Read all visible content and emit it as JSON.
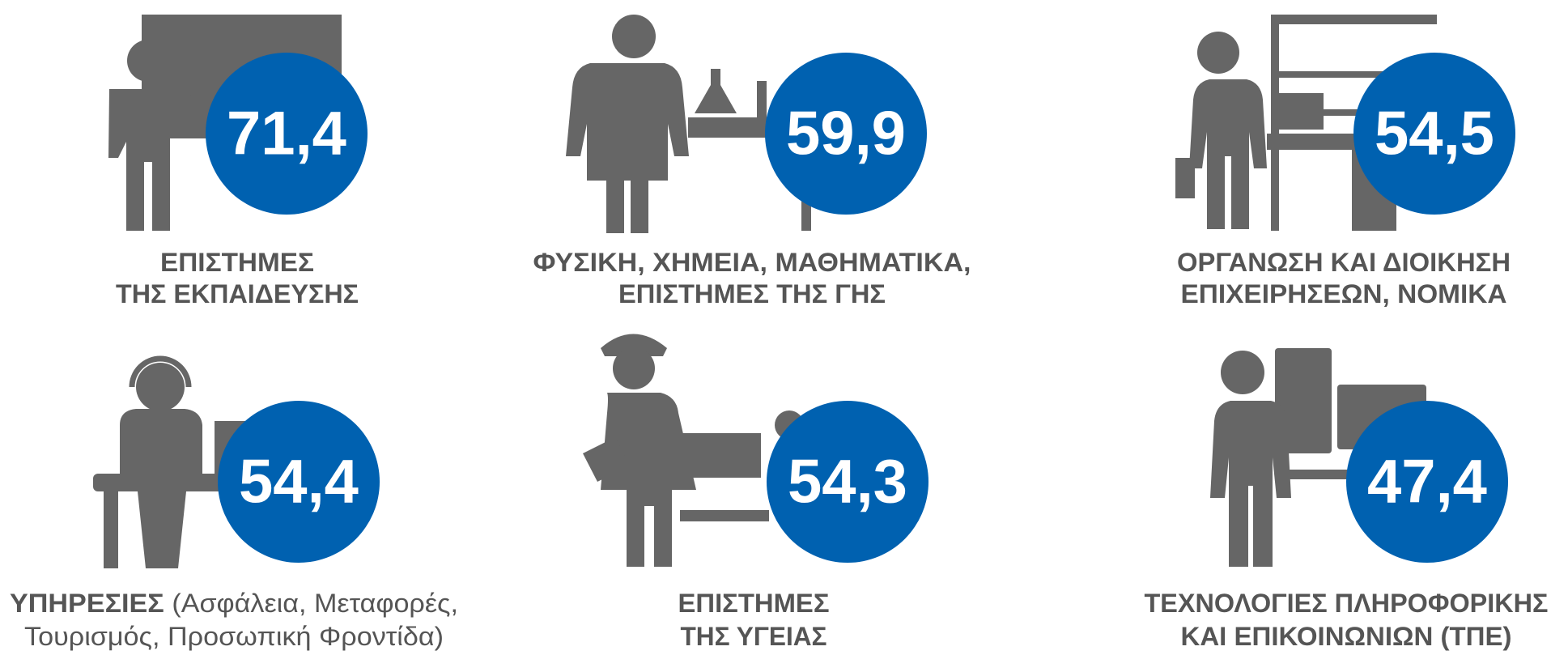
{
  "items": [
    {
      "value": "71,4",
      "lines": [
        "ΕΠΙΣΤΗΜΕΣ",
        "ΤΗΣ ΕΚΠΑΙΔΕΥΣΗΣ"
      ]
    },
    {
      "value": "59,9",
      "lines": [
        "ΦΥΣΙΚΗ, ΧΗΜΕΙΑ, ΜΑΘΗΜΑΤΙΚΑ,",
        "ΕΠΙΣΤΗΜΕΣ ΤΗΣ ΓΗΣ"
      ]
    },
    {
      "value": "54,5",
      "lines": [
        "ΟΡΓΑΝΩΣΗ ΚΑΙ ΔΙΟΙΚΗΣΗ",
        "ΕΠΙΧΕΙΡΗΣΕΩΝ, ΝΟΜΙΚΑ"
      ]
    },
    {
      "value": "54,4",
      "lead": "ΥΠΗΡΕΣΙΕΣ",
      "lines": [
        "(Ασφάλεια, Μεταφορές,",
        "Τουρισμός, Προσωπική Φροντίδα)"
      ]
    },
    {
      "value": "54,3",
      "lines": [
        "ΕΠΙΣΤΗΜΕΣ",
        "ΤΗΣ ΥΓΕΙΑΣ"
      ]
    },
    {
      "value": "47,4",
      "lines": [
        "ΤΕΧΝΟΛΟΓΙΕΣ ΠΛΗΡΟΦΟΡΙΚΗΣ",
        "ΚΑΙ ΕΠΙΚΟΙΝΩΝΙΩΝ (ΤΠΕ)"
      ]
    }
  ]
}
